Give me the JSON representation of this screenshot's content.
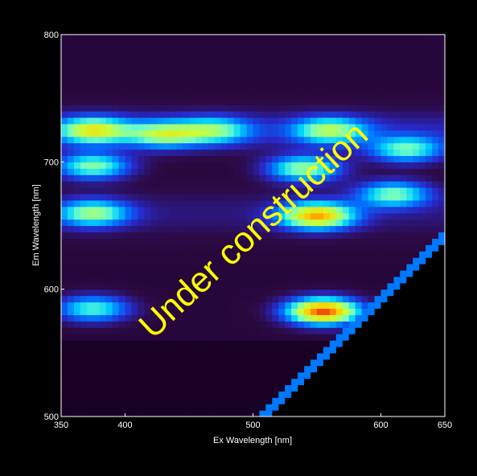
{
  "chart_data": {
    "type": "heatmap",
    "title": "",
    "xlabel": "Ex Wavelength [nm]",
    "ylabel": "Em Wavelength [nm]",
    "xlim": [
      350,
      650
    ],
    "ylim": [
      500,
      800
    ],
    "xticks": [
      "350",
      "400",
      "500",
      "600",
      "650"
    ],
    "xtick_values": [
      350,
      400,
      500,
      600,
      650
    ],
    "yticks": [
      "500",
      "600",
      "700",
      "800"
    ],
    "ytick_values": [
      500,
      600,
      700,
      800
    ],
    "colormap": "jet",
    "background_color": "#000000",
    "masked_region": "emission below excitation (lower-right triangle) is black",
    "grid": false,
    "annotation": "Under construction",
    "annotation_color": "#ffff00",
    "peaks": [
      {
        "ex": 375,
        "em": 725,
        "intensity": 0.55
      },
      {
        "ex": 430,
        "em": 722,
        "intensity": 0.45
      },
      {
        "ex": 470,
        "em": 725,
        "intensity": 0.38
      },
      {
        "ex": 560,
        "em": 725,
        "intensity": 0.45
      },
      {
        "ex": 620,
        "em": 710,
        "intensity": 0.4
      },
      {
        "ex": 375,
        "em": 697,
        "intensity": 0.45
      },
      {
        "ex": 540,
        "em": 695,
        "intensity": 0.48
      },
      {
        "ex": 610,
        "em": 675,
        "intensity": 0.42
      },
      {
        "ex": 375,
        "em": 660,
        "intensity": 0.45
      },
      {
        "ex": 550,
        "em": 658,
        "intensity": 0.7
      },
      {
        "ex": 375,
        "em": 585,
        "intensity": 0.4
      },
      {
        "ex": 555,
        "em": 583,
        "intensity": 0.85
      }
    ]
  }
}
